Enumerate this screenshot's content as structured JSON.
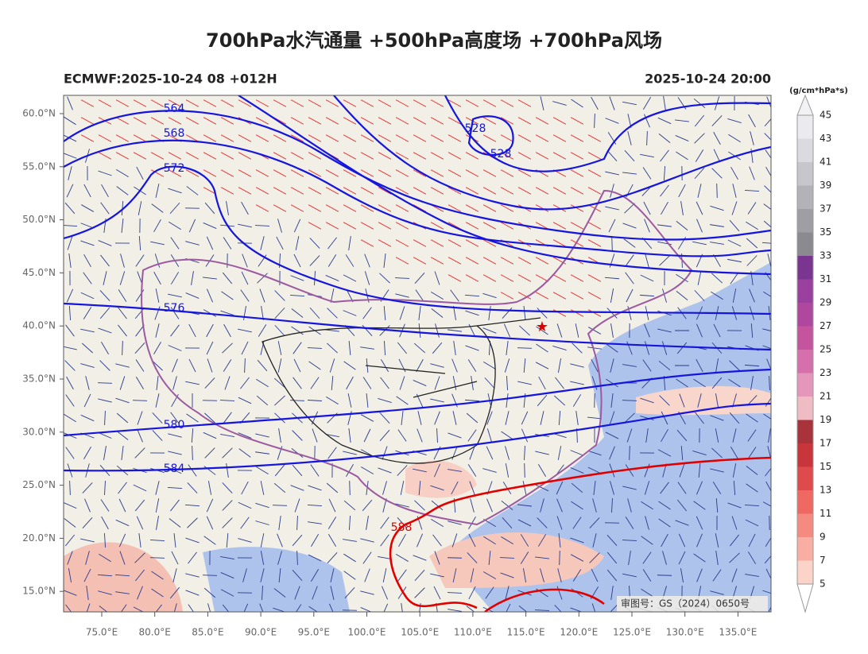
{
  "header": {
    "title": "700hPa水汽通量 +500hPa高度场 +700hPa风场",
    "left": "ECMWF:2025-10-24 08 +012H",
    "right": "2025-10-24 20:00"
  },
  "map": {
    "lat_labels": [
      "60.0°N",
      "55.0°N",
      "50.0°N",
      "45.0°N",
      "40.0°N",
      "35.0°N",
      "30.0°N",
      "25.0°N",
      "20.0°N",
      "15.0°N"
    ],
    "lon_labels": [
      "75.0°E",
      "80.0°E",
      "85.0°E",
      "90.0°E",
      "95.0°E",
      "100.0°E",
      "105.0°E",
      "110.0°E",
      "115.0°E",
      "120.0°E",
      "125.0°E",
      "130.0°E",
      "135.0°E"
    ],
    "contour_labels": [
      "564",
      "568",
      "572",
      "576",
      "580",
      "584",
      "528",
      "528",
      "588"
    ],
    "approval": "审图号：GS（2024）0650号"
  },
  "colorbar": {
    "unit": "(g/cm*hPa*s)",
    "labels": [
      45,
      43,
      41,
      39,
      37,
      35,
      33,
      31,
      29,
      27,
      25,
      23,
      21,
      19,
      17,
      15,
      13,
      11,
      9,
      7,
      5
    ],
    "colors": [
      "#ebebef",
      "#dadae0",
      "#c6c6cc",
      "#b2b2b8",
      "#9e9ea4",
      "#8a8a90",
      "#7a3590",
      "#9a409e",
      "#b0479f",
      "#c5549f",
      "#d570ad",
      "#e496bb",
      "#f0bcc4",
      "#a8333a",
      "#c8363c",
      "#df4a4c",
      "#ef6862",
      "#f58a80",
      "#f8aea2",
      "#fbd3c8"
    ]
  }
}
